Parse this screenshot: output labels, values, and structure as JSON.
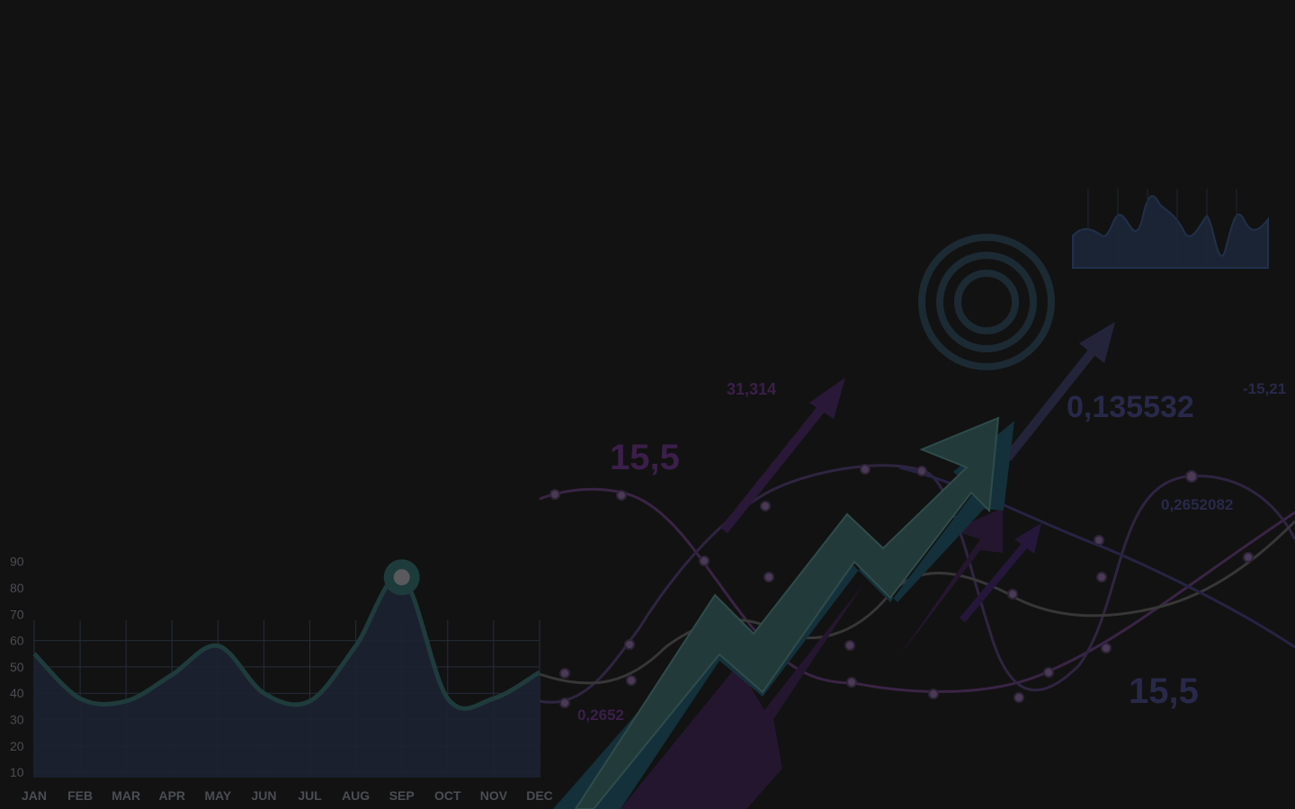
{
  "colors": {
    "background": "#121212",
    "area_fill": "#1b2230",
    "area_line": "#1f3b3c",
    "grid": "#262d3a",
    "tick_text": "#4a4d52",
    "arrow_teal": "#213838",
    "arrow_dark_teal": "#13323a",
    "arrow_purple": "#2a1838",
    "purple_text": "#3b1f4a",
    "navy_text": "#28294a",
    "target_ring": "#1c2a34"
  },
  "chart_data": [
    {
      "type": "area",
      "categories": [
        "JAN",
        "FEB",
        "MAR",
        "APR",
        "MAY",
        "JUN",
        "JUL",
        "AUG",
        "SEP",
        "OCT",
        "NOV",
        "DEC"
      ],
      "values": [
        55,
        38,
        37,
        47,
        58,
        40,
        37,
        58,
        84,
        38,
        38,
        48
      ],
      "y_ticks": [
        10,
        20,
        30,
        40,
        50,
        60,
        70,
        80,
        90
      ],
      "ylim": [
        8,
        95
      ],
      "grid": true,
      "highlight_marker": {
        "category": "SEP",
        "value": 84
      }
    }
  ],
  "decor": {
    "numbers": [
      {
        "text": "15,5",
        "role": "large-purple"
      },
      {
        "text": "31,314",
        "role": "small-purple"
      },
      {
        "text": "0,135532",
        "role": "large-navy"
      },
      {
        "text": "-15,21",
        "role": "small-navy"
      },
      {
        "text": "0,2652082",
        "role": "small-navy"
      },
      {
        "text": "15,5",
        "role": "large-navy"
      },
      {
        "text": "0,2652",
        "role": "small-purple"
      }
    ]
  }
}
